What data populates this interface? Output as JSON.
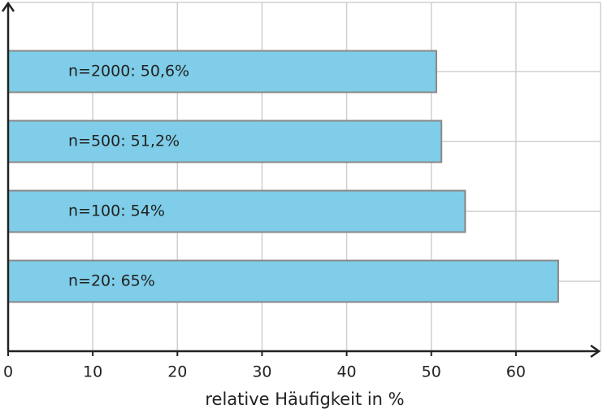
{
  "chart_data": {
    "type": "hbar",
    "x_label": "relative Häufigkeit in %",
    "values": [
      50.6,
      51.2,
      54,
      65
    ],
    "value_labels": [
      "n=2000: 50,6%",
      "n=500: 51,2%",
      "n=100: 54%",
      "n=20: 65%"
    ],
    "color": "#7fcde8",
    "xlim": [
      0,
      70
    ],
    "xticks": [
      0,
      10,
      20,
      30,
      40,
      50,
      60
    ],
    "grid": true
  }
}
